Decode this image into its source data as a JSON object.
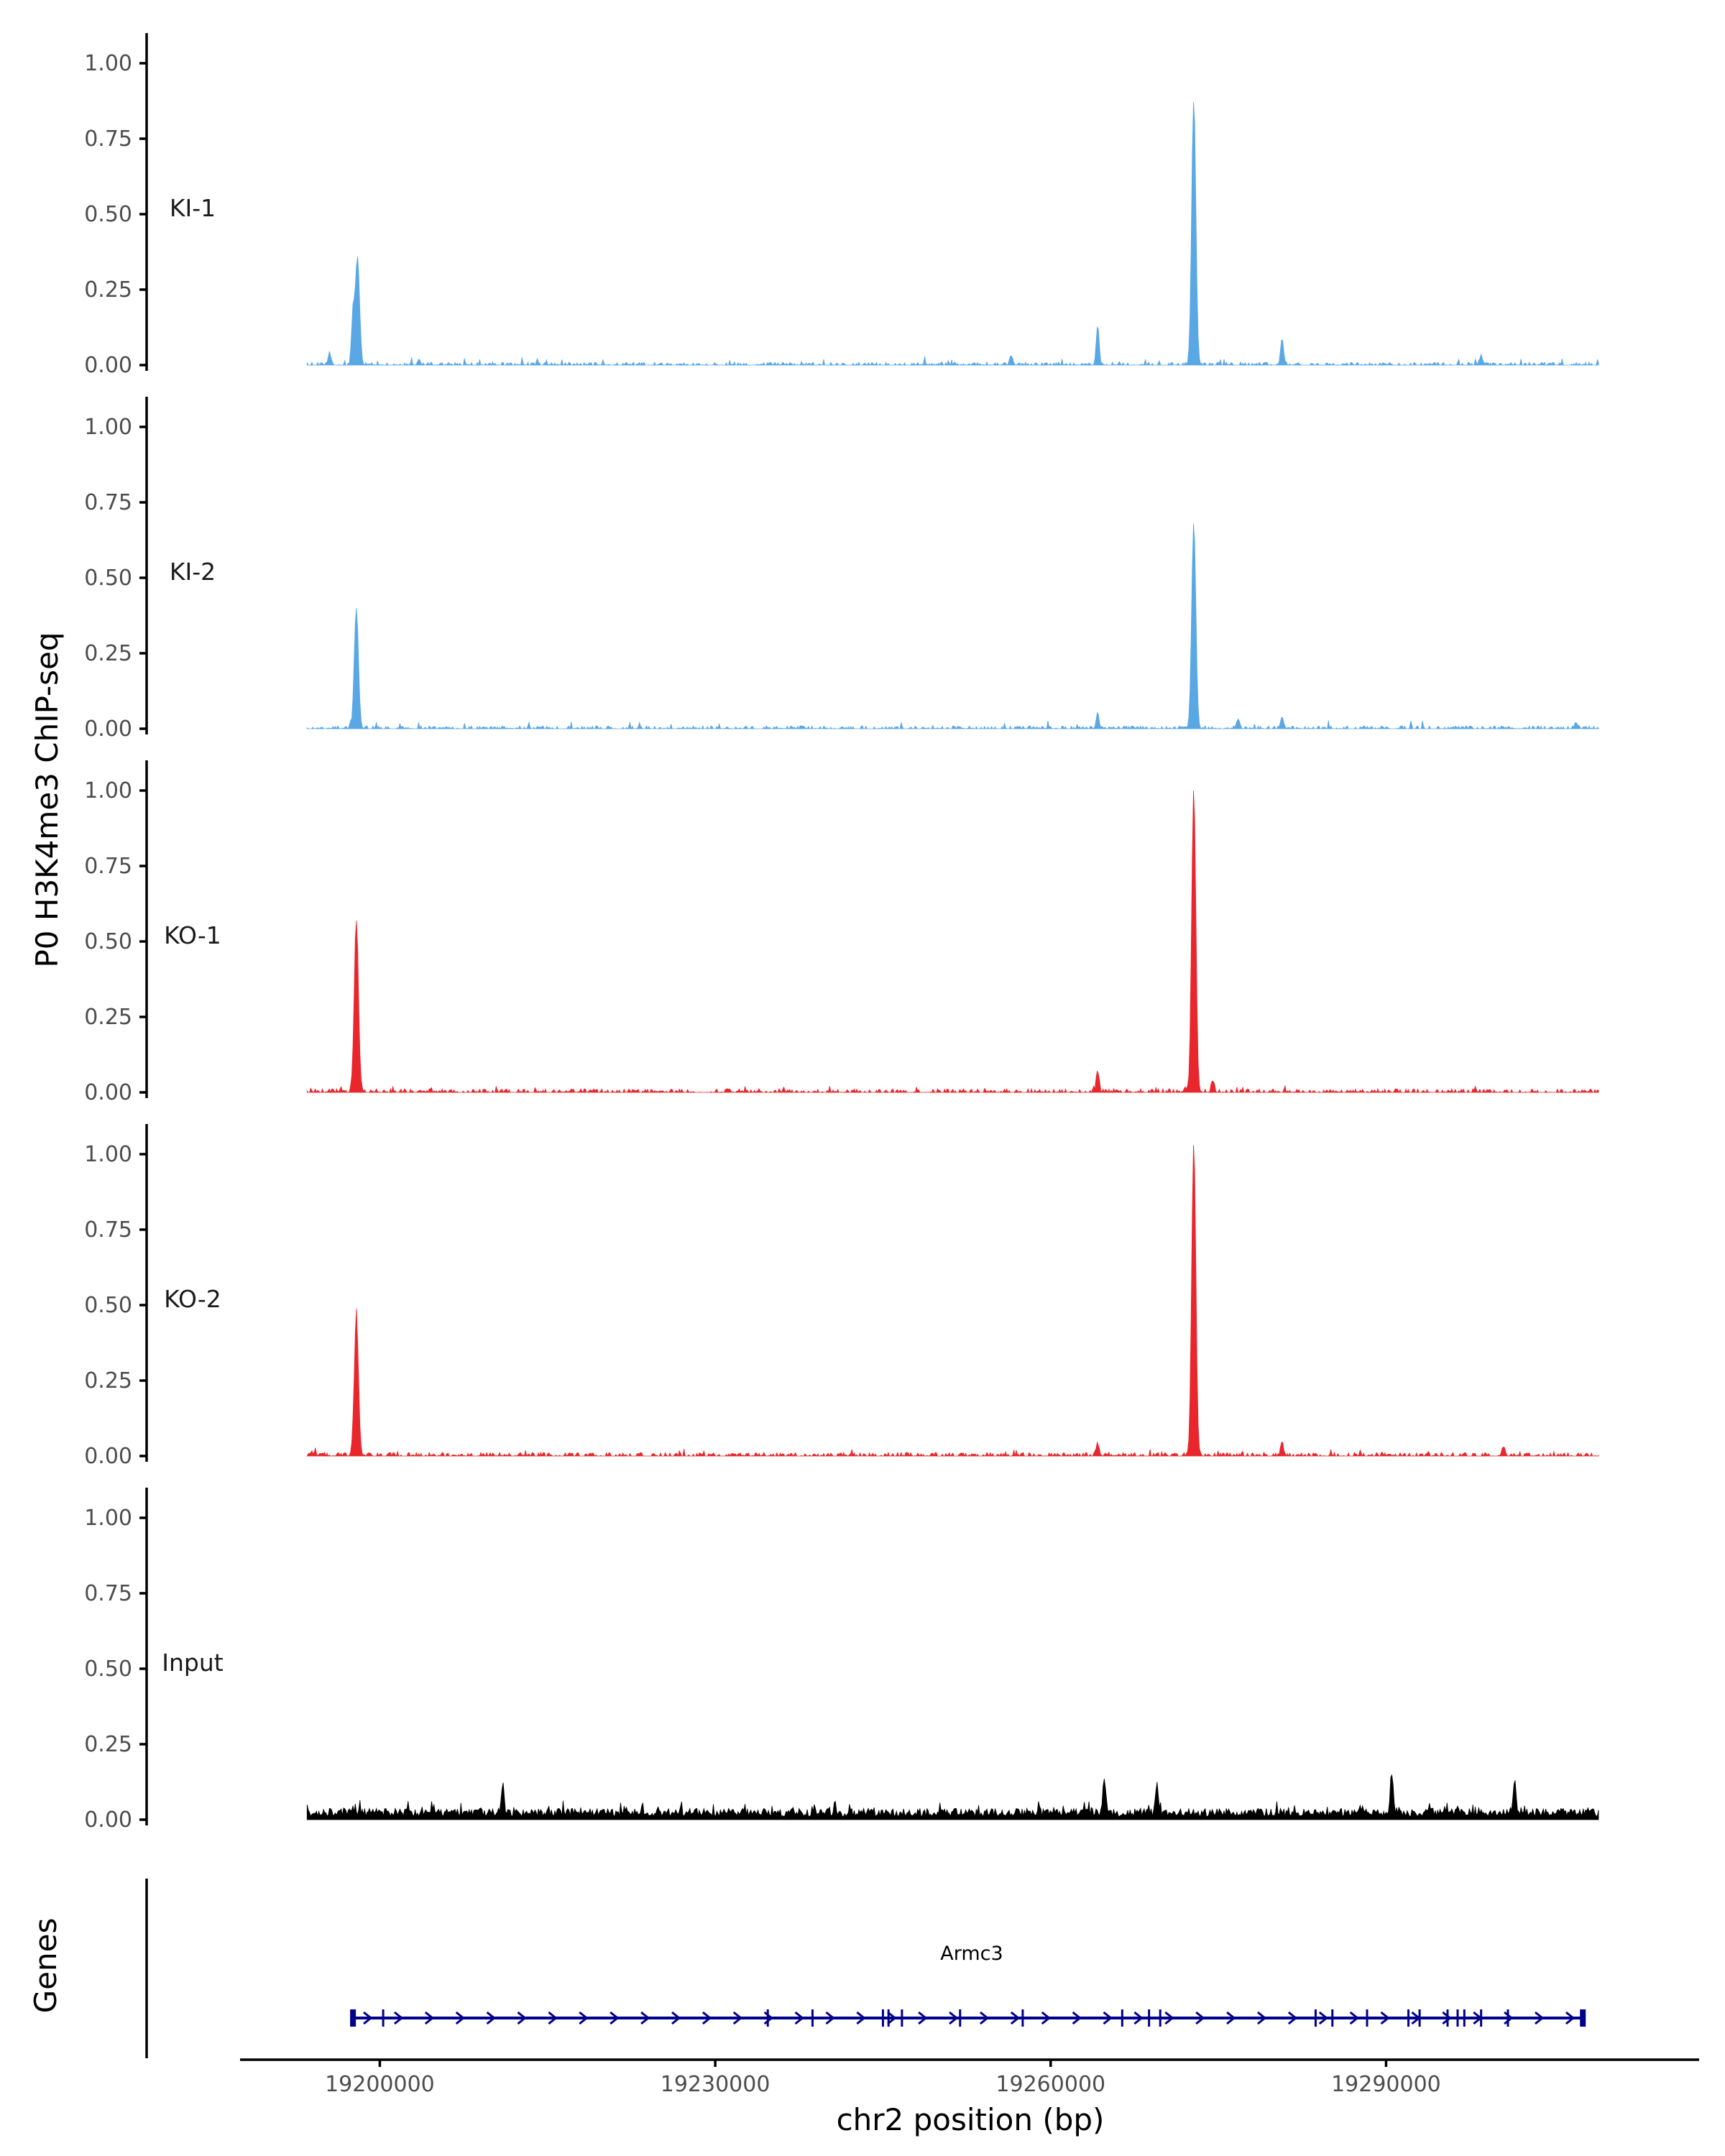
{
  "chart_data": {
    "type": "area",
    "ylabel": "P0 H3K4me3 ChIP-seq",
    "xlabel": "chr2 position (bp)",
    "xlim": [
      19187500,
      19318000
    ],
    "x_ticks": [
      19200000,
      19230000,
      19260000,
      19290000
    ],
    "x_tick_labels": [
      "19200000",
      "19230000",
      "19260000",
      "19290000"
    ],
    "ylim": [
      0,
      1.1
    ],
    "y_ticks": [
      0,
      0.25,
      0.5,
      0.75,
      1.0
    ],
    "y_tick_labels": [
      "0.00",
      "0.25",
      "0.50",
      "0.75",
      "1.00"
    ],
    "signal_range_bp": [
      19193500,
      19309000
    ],
    "grid": false,
    "tracks": [
      {
        "name": "KI-1",
        "color": "#5aa7e6",
        "baseline": 0.008,
        "peaks": [
          {
            "x": 19195500,
            "y": 0.04
          },
          {
            "x": 19197600,
            "y": 0.17
          },
          {
            "x": 19198000,
            "y": 0.36
          },
          {
            "x": 19203500,
            "y": 0.02
          },
          {
            "x": 19256500,
            "y": 0.03
          },
          {
            "x": 19264200,
            "y": 0.13
          },
          {
            "x": 19272800,
            "y": 0.88
          },
          {
            "x": 19280700,
            "y": 0.09
          },
          {
            "x": 19298500,
            "y": 0.03
          }
        ]
      },
      {
        "name": "KI-2",
        "color": "#5aa7e6",
        "baseline": 0.008,
        "peaks": [
          {
            "x": 19197900,
            "y": 0.4
          },
          {
            "x": 19264200,
            "y": 0.05
          },
          {
            "x": 19272800,
            "y": 0.68
          },
          {
            "x": 19276800,
            "y": 0.03
          },
          {
            "x": 19280700,
            "y": 0.04
          },
          {
            "x": 19307000,
            "y": 0.02
          }
        ]
      },
      {
        "name": "KO-1",
        "color": "#e8262c",
        "baseline": 0.01,
        "peaks": [
          {
            "x": 19197900,
            "y": 0.57
          },
          {
            "x": 19264200,
            "y": 0.07
          },
          {
            "x": 19272800,
            "y": 1.0
          },
          {
            "x": 19274500,
            "y": 0.04
          }
        ]
      },
      {
        "name": "KO-2",
        "color": "#e8262c",
        "baseline": 0.01,
        "peaks": [
          {
            "x": 19197900,
            "y": 0.46
          },
          {
            "x": 19264200,
            "y": 0.04
          },
          {
            "x": 19272800,
            "y": 1.04
          },
          {
            "x": 19280700,
            "y": 0.04
          },
          {
            "x": 19300500,
            "y": 0.03
          }
        ]
      },
      {
        "name": "Input",
        "color": "#000000",
        "baseline": 0.03,
        "peaks": [
          {
            "x": 19211000,
            "y": 0.09
          },
          {
            "x": 19264800,
            "y": 0.11
          },
          {
            "x": 19269500,
            "y": 0.09
          },
          {
            "x": 19290500,
            "y": 0.13
          },
          {
            "x": 19301500,
            "y": 0.1
          }
        ]
      }
    ],
    "genes_panel": {
      "title": "Genes",
      "gene": {
        "name": "Armc3",
        "start": 19197500,
        "end": 19307800,
        "strand": "+",
        "color": "#00008b",
        "exons": [
          19197600,
          19200300,
          19234700,
          19238700,
          19245000,
          19245500,
          19246700,
          19251900,
          19257500,
          19266400,
          19268800,
          19269800,
          19283700,
          19285200,
          19288300,
          19292000,
          19293000,
          19295500,
          19296400,
          19297000,
          19298500,
          19300900,
          19307600
        ]
      }
    }
  }
}
